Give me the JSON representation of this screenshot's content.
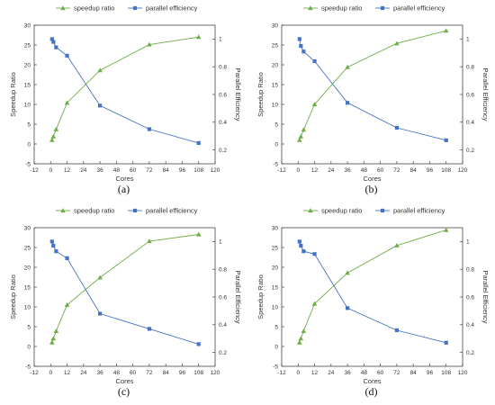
{
  "chart_data": [
    {
      "type": "line",
      "panel_label": "(a)",
      "xlabel": "Cores",
      "ylabel": "Speedup Ratio",
      "y2label": "Parallel Efficiency",
      "xlim": [
        -12,
        120
      ],
      "ylim": [
        -5,
        30
      ],
      "y2lim": [
        0.1,
        1.1
      ],
      "xticks": [
        -12,
        0,
        12,
        24,
        36,
        48,
        60,
        72,
        84,
        96,
        108,
        120
      ],
      "yticks": [
        -5,
        0,
        5,
        10,
        15,
        20,
        25,
        30
      ],
      "y2ticks": [
        0.2,
        0.4,
        0.6,
        0.8,
        1.0
      ],
      "legend": "top",
      "grid": false,
      "series": [
        {
          "name": "speedup ratio",
          "axis": "left",
          "color": "#70ad47",
          "marker": "triangle",
          "x": [
            1,
            2,
            4,
            12,
            36,
            72,
            108
          ],
          "values": [
            1,
            1.9,
            3.7,
            10.4,
            18.6,
            25.1,
            27
          ]
        },
        {
          "name": "parallel efficiency",
          "axis": "right",
          "color": "#4472c4",
          "marker": "square",
          "x": [
            1,
            2,
            4,
            12,
            36,
            72,
            108
          ],
          "values": [
            1.0,
            0.98,
            0.94,
            0.88,
            0.52,
            0.35,
            0.25
          ]
        }
      ]
    },
    {
      "type": "line",
      "panel_label": "(b)",
      "xlabel": "Cores",
      "ylabel": "Speedup Ratio",
      "y2label": "Parallel Efficiency",
      "xlim": [
        -12,
        120
      ],
      "ylim": [
        -5,
        30
      ],
      "y2lim": [
        0.1,
        1.1
      ],
      "xticks": [
        -12,
        0,
        12,
        24,
        36,
        48,
        60,
        72,
        84,
        96,
        108,
        120
      ],
      "yticks": [
        -5,
        0,
        5,
        10,
        15,
        20,
        25,
        30
      ],
      "y2ticks": [
        0.2,
        0.4,
        0.6,
        0.8,
        1.0
      ],
      "legend": "top",
      "grid": false,
      "series": [
        {
          "name": "speedup ratio",
          "axis": "left",
          "color": "#70ad47",
          "marker": "triangle",
          "x": [
            1,
            2,
            4,
            12,
            36,
            72,
            108
          ],
          "values": [
            1,
            1.9,
            3.6,
            10.0,
            19.4,
            25.4,
            28.6
          ]
        },
        {
          "name": "parallel efficiency",
          "axis": "right",
          "color": "#4472c4",
          "marker": "square",
          "x": [
            1,
            2,
            4,
            12,
            36,
            72,
            108
          ],
          "values": [
            1.0,
            0.95,
            0.91,
            0.84,
            0.54,
            0.36,
            0.27
          ]
        }
      ]
    },
    {
      "type": "line",
      "panel_label": "(c)",
      "xlabel": "Cores",
      "ylabel": "Speedup Ratio",
      "y2label": "Parallel Efficiency",
      "xlim": [
        -12,
        120
      ],
      "ylim": [
        -5,
        30
      ],
      "y2lim": [
        0.1,
        1.1
      ],
      "xticks": [
        -12,
        0,
        12,
        24,
        36,
        48,
        60,
        72,
        84,
        96,
        108,
        120
      ],
      "yticks": [
        -5,
        0,
        5,
        10,
        15,
        20,
        25,
        30
      ],
      "y2ticks": [
        0.2,
        0.4,
        0.6,
        0.8,
        1.0
      ],
      "legend": "top",
      "grid": false,
      "series": [
        {
          "name": "speedup ratio",
          "axis": "left",
          "color": "#70ad47",
          "marker": "triangle",
          "x": [
            1,
            2,
            4,
            12,
            36,
            72,
            108
          ],
          "values": [
            1,
            2.0,
            3.9,
            10.5,
            17.4,
            26.6,
            28.3
          ]
        },
        {
          "name": "parallel efficiency",
          "axis": "right",
          "color": "#4472c4",
          "marker": "square",
          "x": [
            1,
            2,
            4,
            12,
            36,
            72,
            108
          ],
          "values": [
            1.0,
            0.97,
            0.93,
            0.88,
            0.48,
            0.37,
            0.26
          ]
        }
      ]
    },
    {
      "type": "line",
      "panel_label": "(d)",
      "xlabel": "Cores",
      "ylabel": "Speedup Ratio",
      "y2label": "Parallel Efficiency",
      "xlim": [
        -12,
        120
      ],
      "ylim": [
        -5,
        30
      ],
      "y2lim": [
        0.1,
        1.1
      ],
      "xticks": [
        -12,
        0,
        12,
        24,
        36,
        48,
        60,
        72,
        84,
        96,
        108,
        120
      ],
      "yticks": [
        -5,
        0,
        5,
        10,
        15,
        20,
        25,
        30
      ],
      "y2ticks": [
        0.2,
        0.4,
        0.6,
        0.8,
        1.0
      ],
      "legend": "top",
      "grid": false,
      "series": [
        {
          "name": "speedup ratio",
          "axis": "left",
          "color": "#70ad47",
          "marker": "triangle",
          "x": [
            1,
            2,
            4,
            12,
            36,
            72,
            108
          ],
          "values": [
            1,
            2.0,
            3.9,
            10.8,
            18.6,
            25.5,
            29.4
          ]
        },
        {
          "name": "parallel efficiency",
          "axis": "right",
          "color": "#4472c4",
          "marker": "square",
          "x": [
            1,
            2,
            4,
            12,
            36,
            72,
            108
          ],
          "values": [
            1.0,
            0.97,
            0.93,
            0.91,
            0.52,
            0.36,
            0.27
          ]
        }
      ]
    }
  ]
}
